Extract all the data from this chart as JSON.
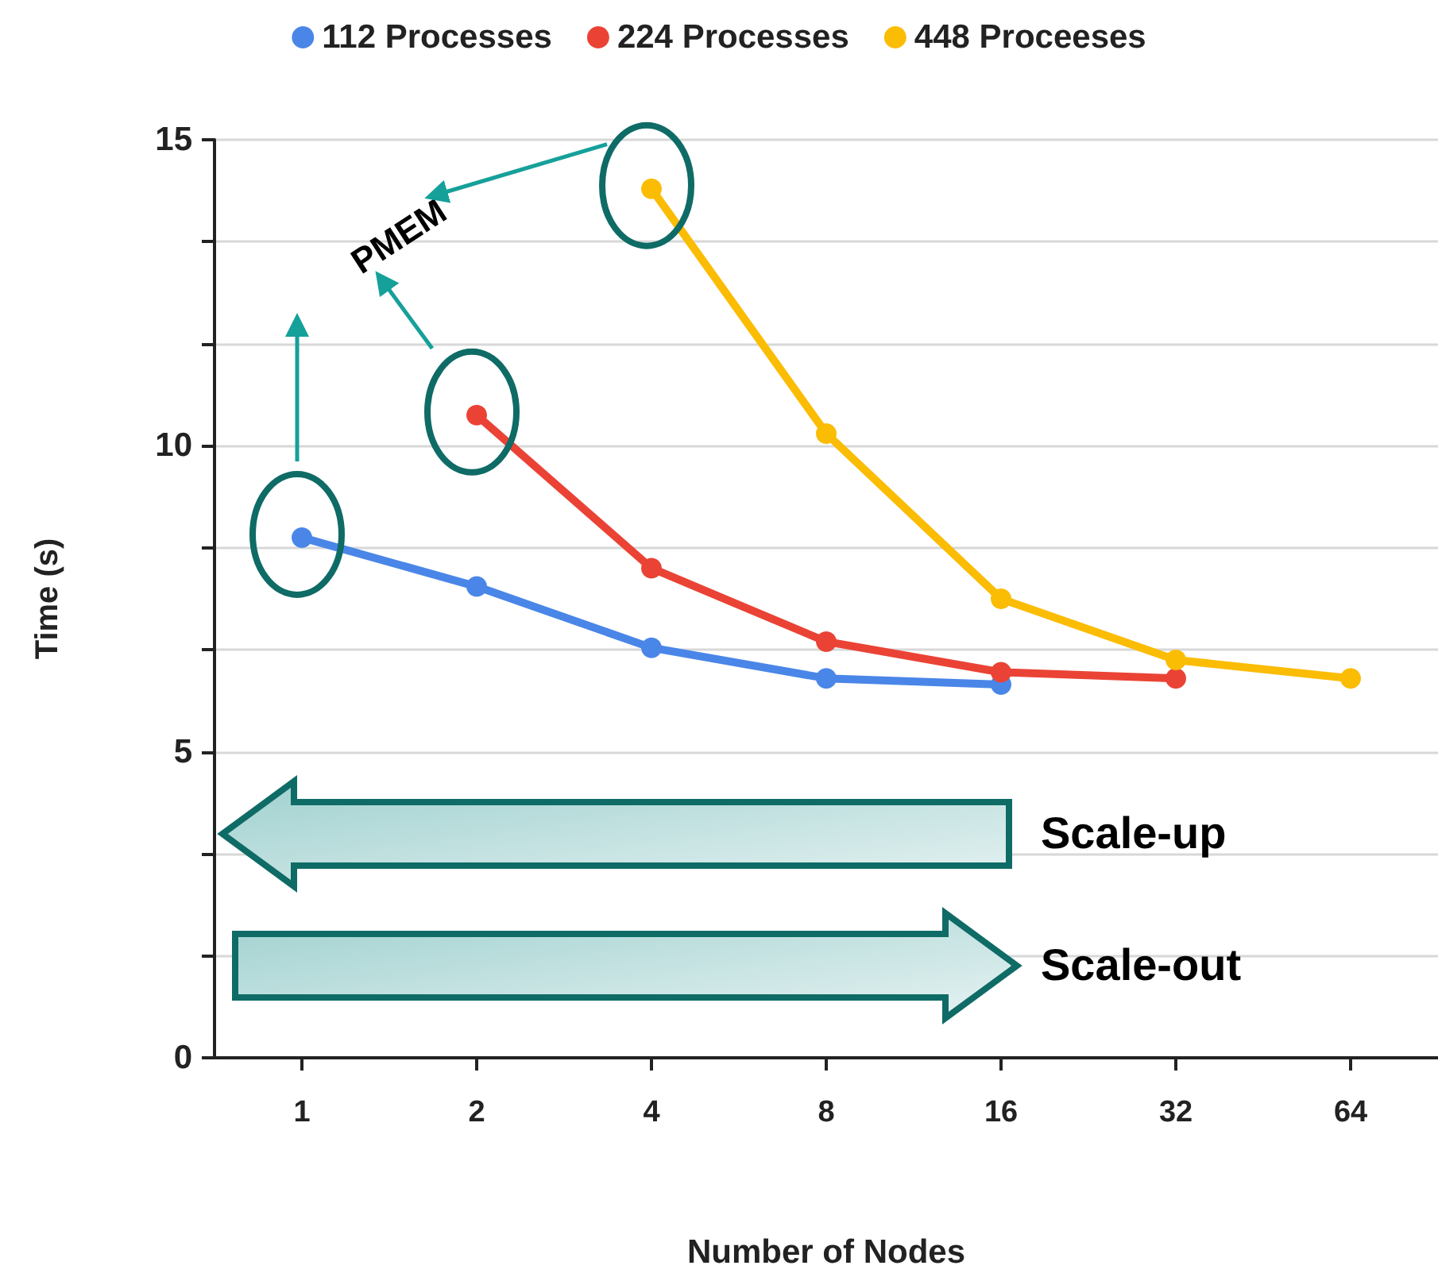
{
  "chart_data": {
    "type": "line",
    "xlabel": "Number of Nodes",
    "ylabel": "Time (s)",
    "categories": [
      "1",
      "2",
      "4",
      "8",
      "16",
      "32",
      "64"
    ],
    "series": [
      {
        "name": "112 Processes",
        "color": "#4a86e8",
        "values": [
          8.5,
          7.7,
          6.7,
          6.2,
          6.1,
          null,
          null
        ]
      },
      {
        "name": "224 Processes",
        "color": "#ea4335",
        "values": [
          null,
          10.5,
          8.0,
          6.8,
          6.3,
          6.2,
          null
        ]
      },
      {
        "name": "448 Proceeses",
        "color": "#fbbc04",
        "values": [
          null,
          null,
          14.2,
          10.2,
          7.5,
          6.5,
          6.2
        ]
      }
    ],
    "ylim": [
      0,
      15
    ],
    "yticks": [
      0,
      {
        "value": 1.667,
        "label": null
      },
      {
        "value": 3.333,
        "label": null
      },
      5,
      {
        "value": 6.667,
        "label": null
      },
      {
        "value": 8.333,
        "label": null
      },
      10,
      {
        "value": 11.667,
        "label": null
      },
      {
        "value": 13.333,
        "label": null
      },
      15
    ],
    "grid": "y",
    "legend": "top",
    "marker": "circle",
    "line_style": "solid",
    "annotations": [
      "PMEM",
      "Scale-up",
      "Scale-out"
    ]
  }
}
